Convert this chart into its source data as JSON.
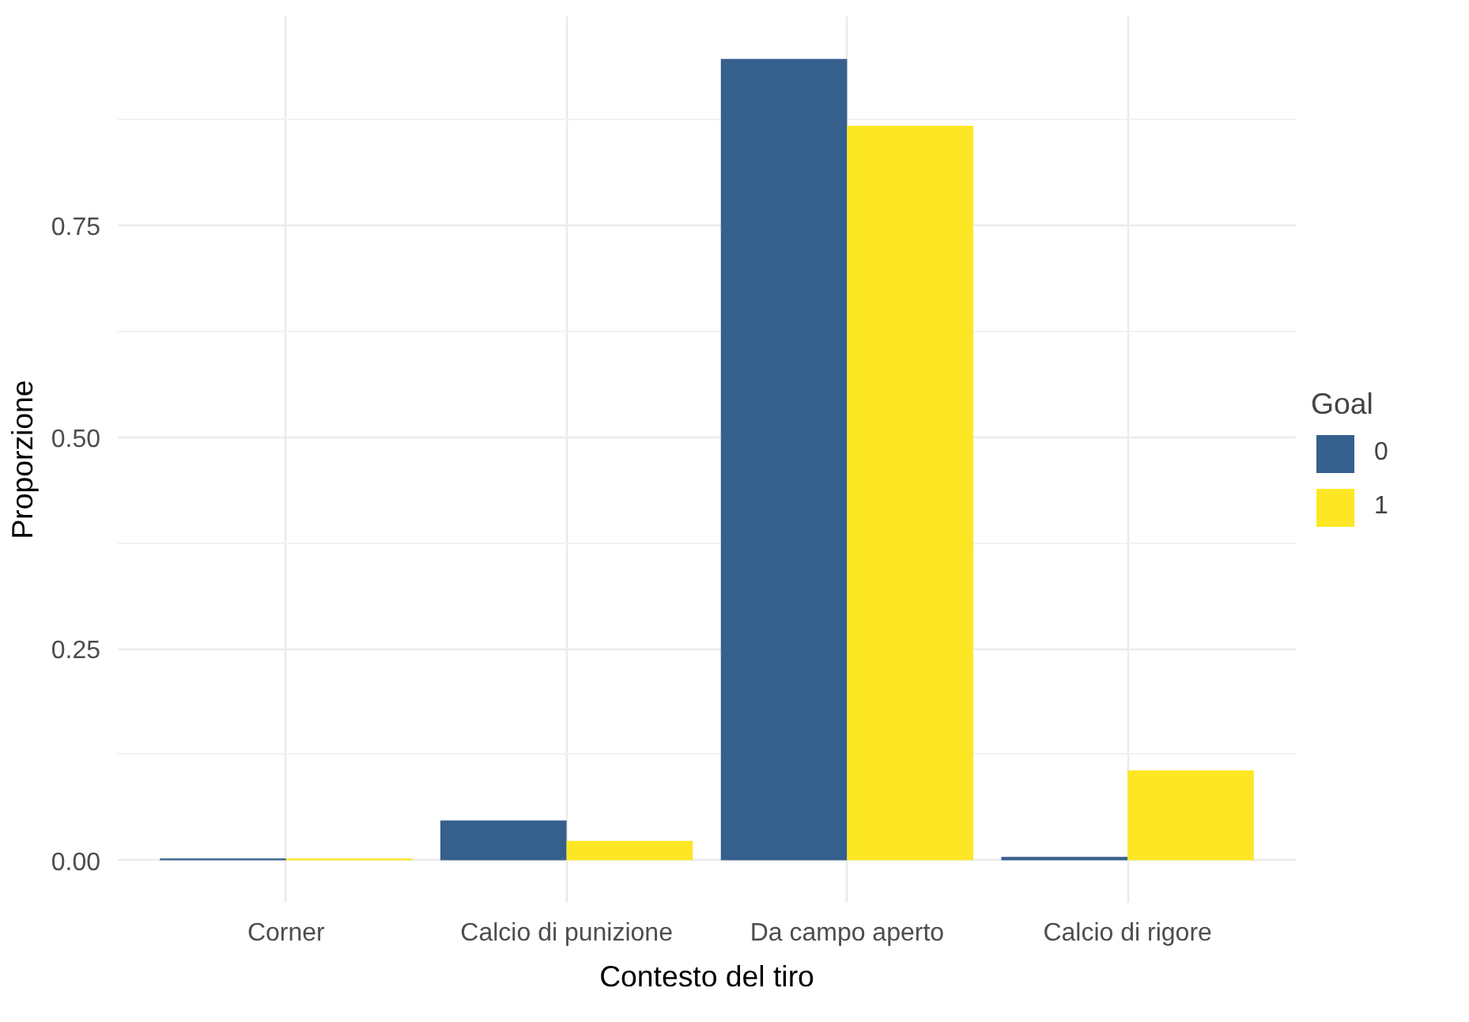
{
  "chart_data": {
    "type": "bar",
    "xlabel": "Contesto del tiro",
    "ylabel": "Proporzione",
    "legend_title": "Goal",
    "categories": [
      "Corner",
      "Calcio di punizione",
      "Da campo aperto",
      "Calcio di rigore"
    ],
    "series": [
      {
        "name": "0",
        "color": "#355f8d",
        "values": [
          0.002,
          0.047,
          0.947,
          0.004
        ]
      },
      {
        "name": "1",
        "color": "#fde725",
        "values": [
          0.002,
          0.023,
          0.868,
          0.106
        ]
      }
    ],
    "ylim": [
      -0.05,
      0.997
    ],
    "yticks": [
      {
        "value": 0,
        "label": "0.00"
      },
      {
        "value": 0.25,
        "label": "0.25"
      },
      {
        "value": 0.5,
        "label": "0.50"
      },
      {
        "value": 0.75,
        "label": "0.75"
      }
    ],
    "grid": true,
    "legend": "right"
  }
}
